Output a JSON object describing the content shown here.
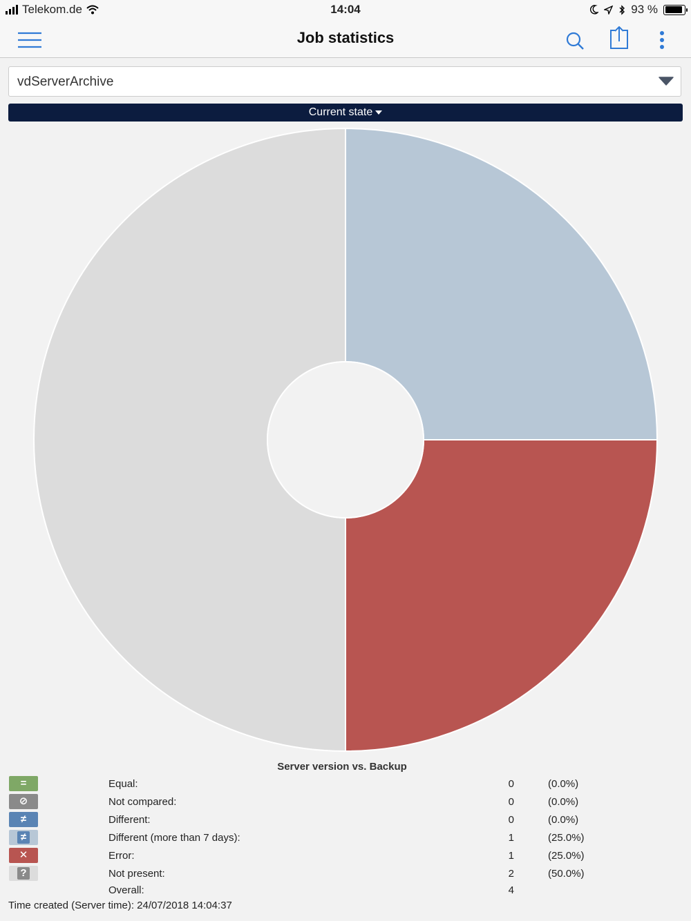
{
  "status_bar": {
    "carrier": "Telekom.de",
    "time": "14:04",
    "battery": "93 %",
    "battery_level": 0.93
  },
  "nav": {
    "title": "Job statistics",
    "menu_icon": "hamburger-icon",
    "search_icon": "search-icon",
    "share_icon": "share-icon",
    "more_icon": "more-vertical-icon",
    "accent": "#2f7ad6"
  },
  "selector": {
    "value": "vdServerArchive"
  },
  "state_button": {
    "label": "Current state"
  },
  "chart_data": {
    "type": "pie",
    "title": "Server version vs. Backup",
    "categories": [
      "Equal",
      "Not compared",
      "Different",
      "Different (more than 7 days)",
      "Error",
      "Not present"
    ],
    "values": [
      0,
      0,
      0,
      1,
      1,
      2
    ],
    "colors": [
      "#7fa866",
      "#8a8a8a",
      "#5a84b4",
      "#b7c7d6",
      "#b85551",
      "#dcdcdc"
    ],
    "donut": true
  },
  "legend": {
    "items": [
      {
        "label": "Equal:",
        "count": "0",
        "pct": "(0.0%)",
        "symbol": "=",
        "color": "#7fa866",
        "text_color": "#ffffff",
        "icon": "equal-icon"
      },
      {
        "label": "Not compared:",
        "count": "0",
        "pct": "(0.0%)",
        "symbol": "⊘",
        "color": "#8a8a8a",
        "text_color": "#ffffff",
        "icon": "not-compared-icon"
      },
      {
        "label": "Different:",
        "count": "0",
        "pct": "(0.0%)",
        "symbol": "≠",
        "color": "#5a84b4",
        "text_color": "#ffffff",
        "icon": "not-equal-icon"
      },
      {
        "label": "Different (more than 7 days):",
        "count": "1",
        "pct": "(25.0%)",
        "symbol": "≠",
        "color": "#b7c7d6",
        "text_color": "#ffffff",
        "inner_color": "#5a84b4",
        "icon": "not-equal-old-icon"
      },
      {
        "label": "Error:",
        "count": "1",
        "pct": "(25.0%)",
        "symbol": "✕",
        "color": "#b85551",
        "text_color": "#ffffff",
        "icon": "error-x-icon"
      },
      {
        "label": "Not present:",
        "count": "2",
        "pct": "(50.0%)",
        "symbol": "?",
        "color": "#dcdcdc",
        "text_color": "#ffffff",
        "inner_color": "#8a8a8a",
        "icon": "question-icon"
      }
    ],
    "overall_label": "Overall:",
    "overall_count": "4"
  },
  "footer": {
    "time_created": "Time created (Server time): 24/07/2018 14:04:37"
  }
}
